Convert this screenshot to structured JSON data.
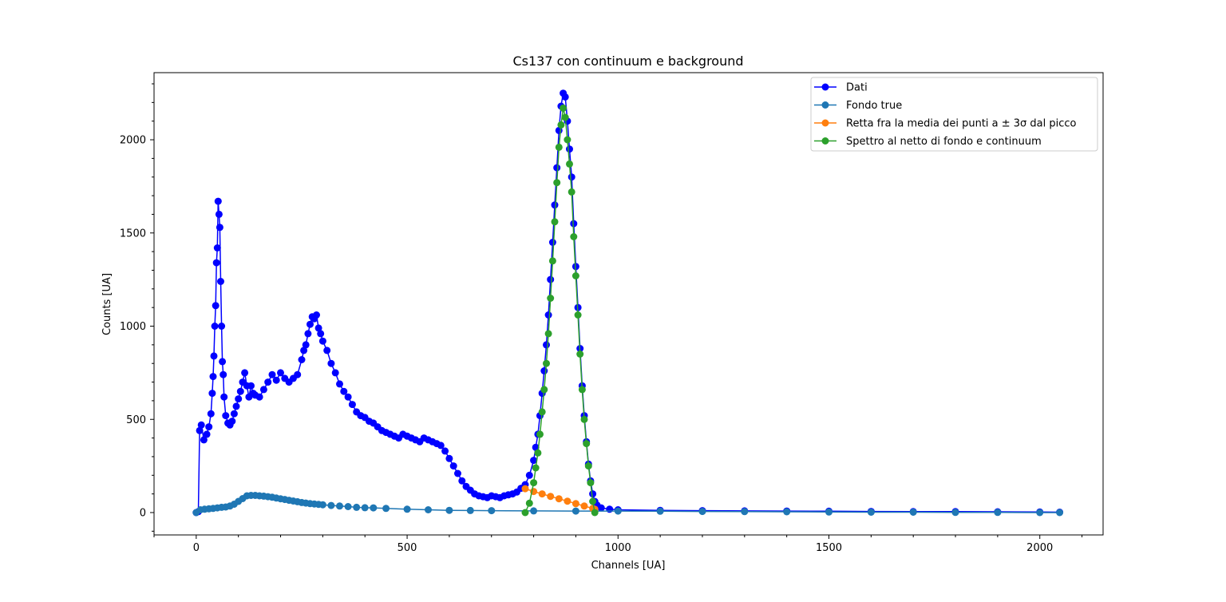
{
  "chart_data": {
    "type": "line",
    "title": "Cs137 con continuum e background",
    "xlabel": "Channels [UA]",
    "ylabel": "Counts [UA]",
    "xlim": [
      -100,
      2150
    ],
    "ylim": [
      -120,
      2360
    ],
    "xticks": [
      0,
      500,
      1000,
      1500,
      2000
    ],
    "yticks": [
      0,
      500,
      1000,
      1500,
      2000
    ],
    "xtick_labels": [
      "0",
      "500",
      "1000",
      "1500",
      "2000"
    ],
    "ytick_labels": [
      "0",
      "500",
      "1000",
      "1500",
      "2000"
    ],
    "grid": false,
    "legend_position": "top-right",
    "series": [
      {
        "name": "Dati",
        "color": "#0000ff",
        "marker": "circle",
        "points": [
          [
            0,
            0
          ],
          [
            5,
            5
          ],
          [
            8,
            440
          ],
          [
            12,
            470
          ],
          [
            18,
            390
          ],
          [
            25,
            420
          ],
          [
            30,
            460
          ],
          [
            35,
            530
          ],
          [
            38,
            640
          ],
          [
            40,
            730
          ],
          [
            42,
            840
          ],
          [
            44,
            1000
          ],
          [
            46,
            1110
          ],
          [
            48,
            1340
          ],
          [
            50,
            1420
          ],
          [
            52,
            1670
          ],
          [
            54,
            1600
          ],
          [
            56,
            1530
          ],
          [
            58,
            1240
          ],
          [
            60,
            1000
          ],
          [
            62,
            810
          ],
          [
            64,
            740
          ],
          [
            66,
            620
          ],
          [
            70,
            520
          ],
          [
            75,
            480
          ],
          [
            80,
            470
          ],
          [
            85,
            490
          ],
          [
            90,
            530
          ],
          [
            95,
            570
          ],
          [
            100,
            610
          ],
          [
            105,
            650
          ],
          [
            110,
            700
          ],
          [
            115,
            750
          ],
          [
            120,
            680
          ],
          [
            125,
            620
          ],
          [
            130,
            680
          ],
          [
            135,
            640
          ],
          [
            140,
            630
          ],
          [
            150,
            620
          ],
          [
            160,
            660
          ],
          [
            170,
            700
          ],
          [
            180,
            740
          ],
          [
            190,
            710
          ],
          [
            200,
            750
          ],
          [
            210,
            720
          ],
          [
            220,
            700
          ],
          [
            230,
            720
          ],
          [
            240,
            740
          ],
          [
            250,
            820
          ],
          [
            255,
            870
          ],
          [
            260,
            900
          ],
          [
            265,
            960
          ],
          [
            270,
            1010
          ],
          [
            275,
            1050
          ],
          [
            280,
            1040
          ],
          [
            285,
            1060
          ],
          [
            290,
            990
          ],
          [
            295,
            960
          ],
          [
            300,
            920
          ],
          [
            310,
            870
          ],
          [
            320,
            800
          ],
          [
            330,
            750
          ],
          [
            340,
            690
          ],
          [
            350,
            650
          ],
          [
            360,
            620
          ],
          [
            370,
            580
          ],
          [
            380,
            540
          ],
          [
            390,
            520
          ],
          [
            400,
            510
          ],
          [
            410,
            490
          ],
          [
            420,
            480
          ],
          [
            430,
            460
          ],
          [
            440,
            440
          ],
          [
            450,
            430
          ],
          [
            460,
            420
          ],
          [
            470,
            410
          ],
          [
            480,
            400
          ],
          [
            490,
            420
          ],
          [
            500,
            410
          ],
          [
            510,
            400
          ],
          [
            520,
            390
          ],
          [
            530,
            380
          ],
          [
            540,
            400
          ],
          [
            550,
            390
          ],
          [
            560,
            380
          ],
          [
            570,
            370
          ],
          [
            580,
            360
          ],
          [
            590,
            330
          ],
          [
            600,
            290
          ],
          [
            610,
            250
          ],
          [
            620,
            210
          ],
          [
            630,
            170
          ],
          [
            640,
            140
          ],
          [
            650,
            120
          ],
          [
            660,
            100
          ],
          [
            670,
            90
          ],
          [
            680,
            85
          ],
          [
            690,
            80
          ],
          [
            700,
            90
          ],
          [
            710,
            85
          ],
          [
            720,
            80
          ],
          [
            730,
            90
          ],
          [
            740,
            95
          ],
          [
            750,
            100
          ],
          [
            760,
            110
          ],
          [
            770,
            130
          ],
          [
            780,
            150
          ],
          [
            790,
            200
          ],
          [
            800,
            280
          ],
          [
            805,
            350
          ],
          [
            810,
            420
          ],
          [
            815,
            520
          ],
          [
            820,
            640
          ],
          [
            825,
            760
          ],
          [
            830,
            900
          ],
          [
            835,
            1060
          ],
          [
            840,
            1250
          ],
          [
            845,
            1450
          ],
          [
            850,
            1650
          ],
          [
            855,
            1850
          ],
          [
            860,
            2050
          ],
          [
            865,
            2180
          ],
          [
            870,
            2250
          ],
          [
            875,
            2230
          ],
          [
            880,
            2100
          ],
          [
            885,
            1950
          ],
          [
            890,
            1800
          ],
          [
            895,
            1550
          ],
          [
            900,
            1320
          ],
          [
            905,
            1100
          ],
          [
            910,
            880
          ],
          [
            915,
            680
          ],
          [
            920,
            520
          ],
          [
            925,
            380
          ],
          [
            930,
            260
          ],
          [
            935,
            170
          ],
          [
            940,
            100
          ],
          [
            945,
            60
          ],
          [
            950,
            40
          ],
          [
            960,
            25
          ],
          [
            980,
            18
          ],
          [
            1000,
            15
          ],
          [
            1100,
            12
          ],
          [
            1200,
            10
          ],
          [
            1300,
            9
          ],
          [
            1400,
            8
          ],
          [
            1500,
            7
          ],
          [
            1600,
            6
          ],
          [
            1700,
            5
          ],
          [
            1800,
            5
          ],
          [
            1900,
            4
          ],
          [
            2000,
            3
          ],
          [
            2047,
            2
          ]
        ]
      },
      {
        "name": "Fondo true",
        "color": "#1f77b4",
        "marker": "circle",
        "points": [
          [
            0,
            0
          ],
          [
            10,
            15
          ],
          [
            20,
            18
          ],
          [
            30,
            20
          ],
          [
            40,
            22
          ],
          [
            50,
            25
          ],
          [
            60,
            28
          ],
          [
            70,
            30
          ],
          [
            80,
            35
          ],
          [
            90,
            45
          ],
          [
            100,
            60
          ],
          [
            110,
            75
          ],
          [
            120,
            90
          ],
          [
            130,
            92
          ],
          [
            140,
            92
          ],
          [
            150,
            90
          ],
          [
            160,
            88
          ],
          [
            170,
            85
          ],
          [
            180,
            82
          ],
          [
            190,
            78
          ],
          [
            200,
            74
          ],
          [
            210,
            70
          ],
          [
            220,
            66
          ],
          [
            230,
            62
          ],
          [
            240,
            58
          ],
          [
            250,
            54
          ],
          [
            260,
            51
          ],
          [
            270,
            48
          ],
          [
            280,
            46
          ],
          [
            290,
            44
          ],
          [
            300,
            42
          ],
          [
            320,
            38
          ],
          [
            340,
            35
          ],
          [
            360,
            32
          ],
          [
            380,
            28
          ],
          [
            400,
            26
          ],
          [
            420,
            25
          ],
          [
            450,
            22
          ],
          [
            500,
            18
          ],
          [
            550,
            15
          ],
          [
            600,
            12
          ],
          [
            650,
            11
          ],
          [
            700,
            10
          ],
          [
            800,
            9
          ],
          [
            900,
            8
          ],
          [
            1000,
            8
          ],
          [
            1100,
            7
          ],
          [
            1200,
            6
          ],
          [
            1300,
            5
          ],
          [
            1400,
            4
          ],
          [
            1500,
            3
          ],
          [
            1600,
            2
          ],
          [
            1700,
            2
          ],
          [
            1800,
            1
          ],
          [
            1900,
            1
          ],
          [
            2000,
            0
          ],
          [
            2047,
            0
          ]
        ]
      },
      {
        "name": "Retta fra la media dei punti a ± 3σ dal picco",
        "color": "#ff7f0e",
        "marker": "circle",
        "points": [
          [
            780,
            128
          ],
          [
            800,
            113
          ],
          [
            820,
            100
          ],
          [
            840,
            87
          ],
          [
            860,
            74
          ],
          [
            880,
            61
          ],
          [
            900,
            48
          ],
          [
            920,
            35
          ],
          [
            940,
            22
          ],
          [
            945,
            18
          ]
        ]
      },
      {
        "name": "Spettro al netto di fondo e continuum",
        "color": "#2ca02c",
        "marker": "circle",
        "points": [
          [
            780,
            0
          ],
          [
            790,
            50
          ],
          [
            800,
            160
          ],
          [
            805,
            240
          ],
          [
            810,
            320
          ],
          [
            815,
            420
          ],
          [
            820,
            540
          ],
          [
            825,
            660
          ],
          [
            830,
            800
          ],
          [
            835,
            960
          ],
          [
            840,
            1150
          ],
          [
            845,
            1350
          ],
          [
            850,
            1560
          ],
          [
            855,
            1770
          ],
          [
            860,
            1960
          ],
          [
            865,
            2080
          ],
          [
            870,
            2170
          ],
          [
            875,
            2120
          ],
          [
            880,
            2000
          ],
          [
            885,
            1870
          ],
          [
            890,
            1720
          ],
          [
            895,
            1480
          ],
          [
            900,
            1270
          ],
          [
            905,
            1060
          ],
          [
            910,
            850
          ],
          [
            915,
            660
          ],
          [
            920,
            500
          ],
          [
            925,
            370
          ],
          [
            930,
            250
          ],
          [
            935,
            160
          ],
          [
            940,
            60
          ],
          [
            945,
            0
          ]
        ]
      }
    ]
  }
}
